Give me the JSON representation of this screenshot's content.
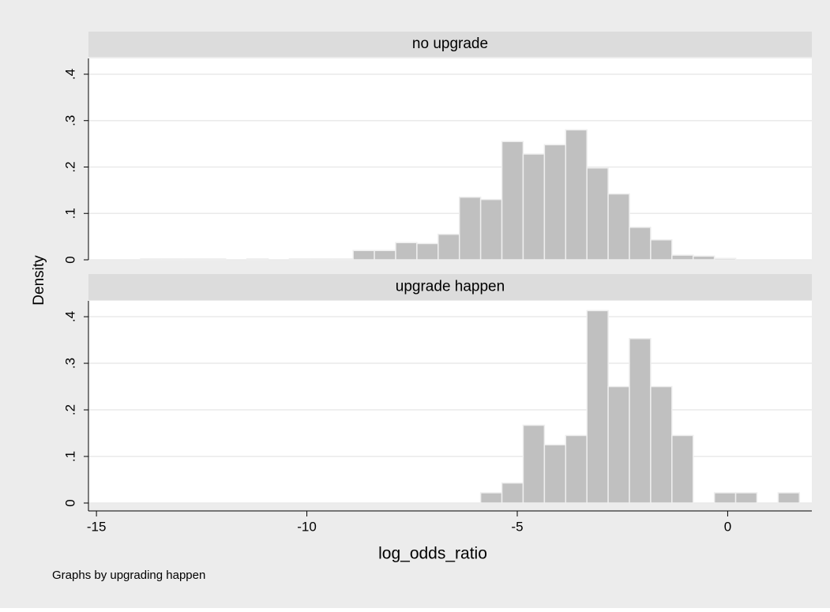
{
  "ylabel": "Density",
  "xlabel": "log_odds_ratio",
  "note": "Graphs by upgrading happen",
  "chart_data": [
    {
      "type": "histogram",
      "title": "no upgrade",
      "color": "#c0c0c0",
      "bins": [
        -13.95,
        -13.445,
        -12.94,
        -12.435,
        -11.93,
        -11.425,
        -10.92,
        -10.415,
        -9.91,
        -9.405,
        -8.9,
        -8.395,
        -7.89,
        -7.385,
        -6.88,
        -6.375,
        -5.87,
        -5.365,
        -4.86,
        -4.355,
        -3.85,
        -3.345,
        -2.84,
        -2.335,
        -1.83,
        -1.325,
        -0.82,
        -0.315,
        0.19,
        0.695,
        1.2,
        1.705
      ],
      "values": [
        0.002,
        0.002,
        0.002,
        0.002,
        0,
        0.002,
        0,
        0.002,
        0.002,
        0.002,
        0.02,
        0.02,
        0.037,
        0.035,
        0.055,
        0.135,
        0.13,
        0.255,
        0.228,
        0.248,
        0.28,
        0.198,
        0.142,
        0.07,
        0.043,
        0.01,
        0.008,
        0.003,
        0,
        0,
        0
      ],
      "xlim": [
        -15.19,
        2.0
      ],
      "ylim": [
        0,
        0.434
      ],
      "yticks": [
        0,
        {
          "value": 0.1,
          "label": ".1"
        },
        {
          "value": 0.2,
          "label": ".2"
        },
        {
          "value": 0.3,
          "label": ".3"
        },
        {
          "value": 0.4,
          "label": ".4"
        }
      ],
      "grid": true
    },
    {
      "type": "histogram",
      "title": "upgrade happen",
      "color": "#c0c0c0",
      "bins": [
        -13.95,
        -13.445,
        -12.94,
        -12.435,
        -11.93,
        -11.425,
        -10.92,
        -10.415,
        -9.91,
        -9.405,
        -8.9,
        -8.395,
        -7.89,
        -7.385,
        -6.88,
        -6.375,
        -5.87,
        -5.365,
        -4.86,
        -4.355,
        -3.85,
        -3.345,
        -2.84,
        -2.335,
        -1.83,
        -1.325,
        -0.82,
        -0.315,
        0.19,
        0.695,
        1.2,
        1.705
      ],
      "values": [
        0,
        0,
        0,
        0,
        0,
        0,
        0,
        0,
        0,
        0,
        0,
        0,
        0,
        0,
        0,
        0,
        0.022,
        0.043,
        0.167,
        0.125,
        0.145,
        0.413,
        0.25,
        0.353,
        0.25,
        0.145,
        0,
        0.022,
        0.022,
        0,
        0.022
      ],
      "xlim": [
        -15.19,
        2.0
      ],
      "ylim": [
        0,
        0.434
      ],
      "yticks": [
        0,
        {
          "value": 0.1,
          "label": ".1"
        },
        {
          "value": 0.2,
          "label": ".2"
        },
        {
          "value": 0.3,
          "label": ".3"
        },
        {
          "value": 0.4,
          "label": ".4"
        }
      ],
      "xticks": [
        -15,
        -10,
        -5,
        0
      ],
      "grid": true
    }
  ]
}
